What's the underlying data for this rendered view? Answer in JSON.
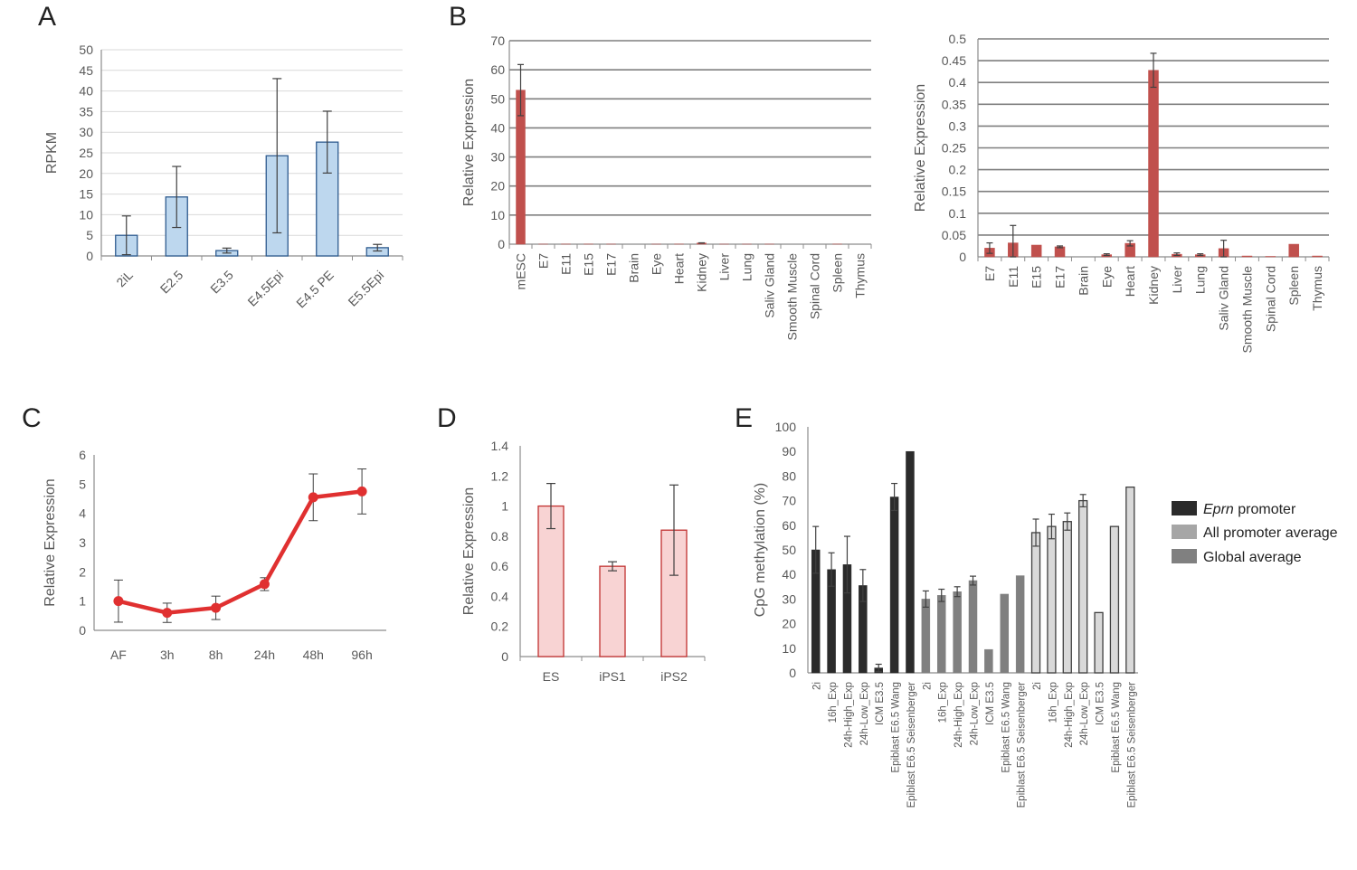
{
  "colors": {
    "blue_fill": "#bdd7ee",
    "blue_edge": "#2e5b8f",
    "red_bar": "#c0504d",
    "red_line": "#e03030",
    "pink_fill": "#f8d3d3",
    "pink_edge": "#c0302f",
    "dark": "#2b2b2b",
    "mid": "#808080",
    "light": "#d9d9d9",
    "grid": "#d9d9d9",
    "axis": "#8c8c8c",
    "err": "#404040"
  },
  "chart_data": [
    {
      "id": "A",
      "panel_label": "A",
      "type": "bar",
      "ylabel": "RPKM",
      "ylim": [
        0,
        50
      ],
      "ystep": 5,
      "yticks": [
        "0",
        "5",
        "10",
        "15",
        "20",
        "25",
        "30",
        "35",
        "40",
        "45",
        "50"
      ],
      "categories": [
        "2iL",
        "E2.5",
        "E3.5",
        "E4.5Epi",
        "E4.5 PE",
        "E5.5Epi"
      ],
      "values": [
        5,
        14.3,
        1.3,
        24.3,
        27.6,
        2
      ],
      "errors": [
        4.7,
        7.4,
        0.6,
        18.7,
        7.5,
        0.8
      ],
      "grid": true
    },
    {
      "id": "B1",
      "panel_label": "B",
      "type": "bar",
      "ylabel": "Relative Expression",
      "ylim": [
        0,
        70
      ],
      "ystep": 10,
      "yticks": [
        "0",
        "10",
        "20",
        "30",
        "40",
        "50",
        "60",
        "70"
      ],
      "categories": [
        "mESC",
        "E7",
        "E11",
        "E15",
        "E17",
        "Brain",
        "Eye",
        "Heart",
        "Kidney",
        "Liver",
        "Lung",
        "Saliv Gland",
        "Smooth Muscle",
        "Spinal Cord",
        "Spleen",
        "Thymus"
      ],
      "values": [
        53,
        0.02,
        0.03,
        0.03,
        0.02,
        0,
        0.01,
        0.03,
        0.43,
        0.01,
        0.01,
        0.02,
        0,
        0,
        0.03,
        0
      ],
      "errors": [
        8.8,
        0,
        0,
        0,
        0,
        0,
        0,
        0,
        0.04,
        0,
        0,
        0,
        0,
        0,
        0,
        0
      ],
      "grid": true
    },
    {
      "id": "B2",
      "type": "bar",
      "ylabel": "Relative Expression",
      "ylim": [
        0,
        0.5
      ],
      "ystep": 0.05,
      "yticks": [
        "0",
        "0.05",
        "0.1",
        "0.15",
        "0.2",
        "0.25",
        "0.3",
        "0.35",
        "0.4",
        "0.45",
        "0.5"
      ],
      "categories": [
        "E7",
        "E11",
        "E15",
        "E17",
        "Brain",
        "Eye",
        "Heart",
        "Kidney",
        "Liver",
        "Lung",
        "Saliv Gland",
        "Smooth Muscle",
        "Spinal Cord",
        "Spleen",
        "Thymus"
      ],
      "values": [
        0.02,
        0.032,
        0.027,
        0.023,
        0,
        0.005,
        0.031,
        0.428,
        0.006,
        0.005,
        0.019,
        0.002,
        0.001,
        0.029,
        0.002
      ],
      "errors": [
        0.012,
        0.04,
        0,
        0.002,
        0,
        0.002,
        0.006,
        0.039,
        0.003,
        0.002,
        0.019,
        0,
        0,
        0,
        0
      ],
      "grid": true
    },
    {
      "id": "C",
      "panel_label": "C",
      "type": "line",
      "ylabel": "Relative Expression",
      "ylim": [
        0,
        6
      ],
      "ystep": 1,
      "yticks": [
        "0",
        "1",
        "2",
        "3",
        "4",
        "5",
        "6"
      ],
      "categories": [
        "AF",
        "3h",
        "8h",
        "24h",
        "48h",
        "96h"
      ],
      "values": [
        1,
        0.6,
        0.77,
        1.58,
        4.55,
        4.75
      ],
      "errors": [
        0.72,
        0.33,
        0.4,
        0.22,
        0.8,
        0.77
      ],
      "grid": false
    },
    {
      "id": "D",
      "panel_label": "D",
      "type": "bar",
      "ylabel": "Relative Expression",
      "ylim": [
        0,
        1.4
      ],
      "ystep": 0.2,
      "yticks": [
        "0",
        "0.2",
        "0.4",
        "0.6",
        "0.8",
        "1",
        "1.2",
        "1.4"
      ],
      "categories": [
        "ES",
        "iPS1",
        "iPS2"
      ],
      "values": [
        1,
        0.6,
        0.84
      ],
      "errors": [
        0.15,
        0.03,
        0.3
      ],
      "grid": false
    },
    {
      "id": "E",
      "panel_label": "E",
      "type": "bar",
      "ylabel": "CpG methylation (%)",
      "ylim": [
        0,
        100
      ],
      "ystep": 10,
      "yticks": [
        "0",
        "10",
        "20",
        "30",
        "40",
        "50",
        "60",
        "70",
        "80",
        "90",
        "100"
      ],
      "categories": [
        "2i",
        "16h_Exp",
        "24h-High_Exp",
        "24h-Low_Exp",
        "ICM E3.5",
        "Epiblast E6.5 Wang",
        "Epiblast E6.5 Seisenberger"
      ],
      "series": [
        {
          "name": "Eprn promoter",
          "name_main": "Eprn",
          "name_rest": " promoter",
          "values": [
            50,
            42,
            44,
            35.5,
            2,
            71.5,
            90
          ],
          "errors": [
            9.5,
            6.8,
            11.5,
            6.5,
            1.5,
            5.5,
            0
          ]
        },
        {
          "name": "Global average",
          "values": [
            30,
            31.5,
            33,
            37.5,
            9.5,
            32,
            39.5
          ],
          "errors": [
            3.3,
            2.5,
            2,
            1.8,
            0,
            0,
            0
          ]
        },
        {
          "name": "All promoter average",
          "values": [
            57,
            59.5,
            61.5,
            70,
            24.5,
            59.5,
            75.5
          ],
          "errors": [
            5.5,
            5,
            3.5,
            2.5,
            0,
            0,
            0
          ]
        }
      ],
      "legend": [
        "Eprn promoter",
        "All promoter average",
        "Global average"
      ],
      "grid": false
    }
  ]
}
